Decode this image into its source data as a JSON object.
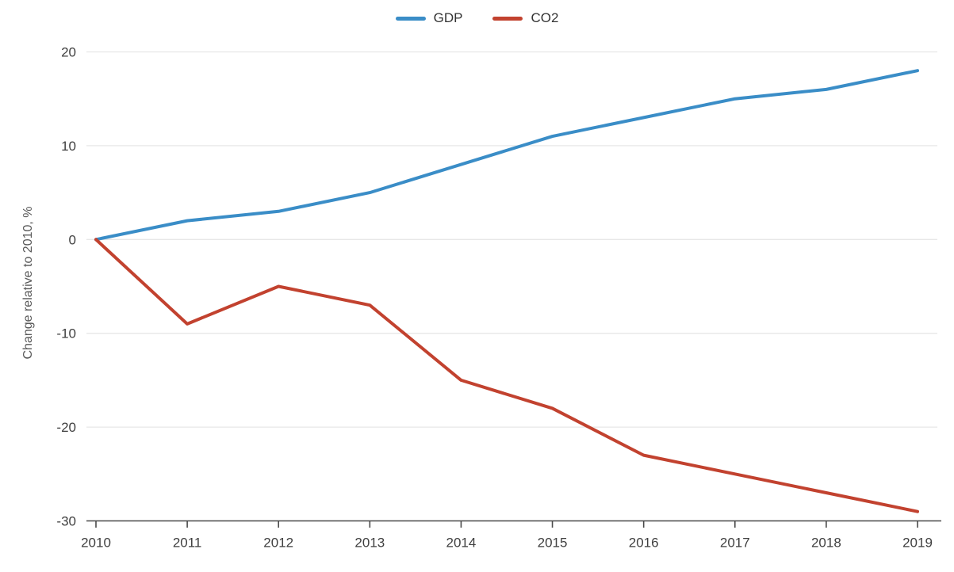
{
  "chart_data": {
    "type": "line",
    "title": "",
    "x": [
      2010,
      2011,
      2012,
      2013,
      2014,
      2015,
      2016,
      2017,
      2018,
      2019
    ],
    "x_tick_labels": [
      "2010",
      "2011",
      "2012",
      "2013",
      "2014",
      "2015",
      "2016",
      "2017",
      "2018",
      "2019"
    ],
    "series": [
      {
        "name": "GDP",
        "color": "#3a8dc7",
        "values": [
          0,
          2,
          3,
          5,
          8,
          11,
          13,
          15,
          16,
          18
        ]
      },
      {
        "name": "CO2",
        "color": "#c2422f",
        "values": [
          0,
          -9,
          -5,
          -7,
          -15,
          -18,
          -23,
          -25,
          -27,
          -29
        ]
      }
    ],
    "xlabel": "",
    "ylabel": "Change relative to 2010, %",
    "ylim": [
      -30,
      20
    ],
    "yticks": [
      20,
      10,
      0,
      -10,
      -20,
      -30
    ],
    "y_tick_labels": [
      "20",
      "10",
      "0",
      "-10",
      "-20",
      "-30"
    ],
    "grid": true,
    "legend_position": "top-center",
    "colors": {
      "background": "#ffffff",
      "grid": "#e7e7e7",
      "axis": "#4a4a4a",
      "tick_text": "#3f3f3f",
      "axis_title_text": "#595959",
      "legend_text": "#333333"
    }
  }
}
